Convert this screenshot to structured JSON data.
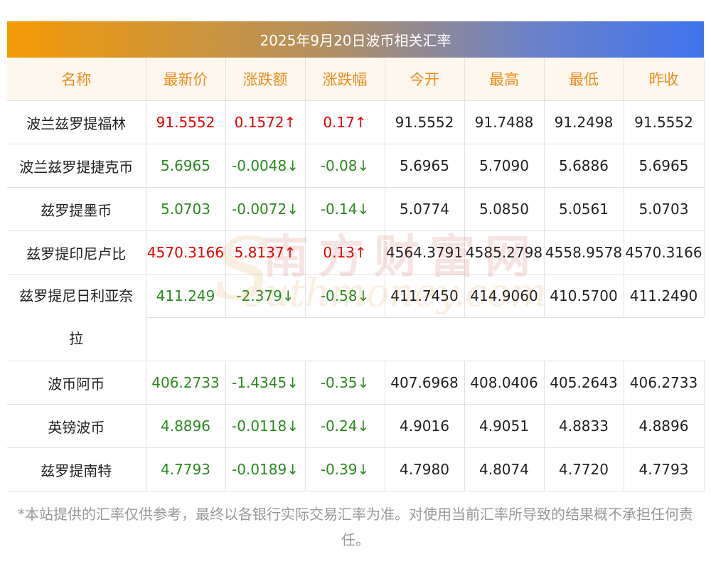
{
  "title": "2025年9月20日波币相关汇率",
  "headers": [
    "名称",
    "最新价",
    "涨跌额",
    "涨跌幅",
    "今开",
    "最高",
    "最低",
    "昨收"
  ],
  "rows": [
    {
      "name": "波兰兹罗提福林",
      "latest": "91.5552",
      "change": "0.1572↑",
      "pct": "0.17↑",
      "open": "91.5552",
      "high": "91.7488",
      "low": "91.2498",
      "prev": "91.5552",
      "dir": "up"
    },
    {
      "name": "波兰兹罗提捷克币",
      "latest": "5.6965",
      "change": "-0.0048↓",
      "pct": "-0.08↓",
      "open": "5.6965",
      "high": "5.7090",
      "low": "5.6886",
      "prev": "5.6965",
      "dir": "down"
    },
    {
      "name": "兹罗提墨币",
      "latest": "5.0703",
      "change": "-0.0072↓",
      "pct": "-0.14↓",
      "open": "5.0774",
      "high": "5.0850",
      "low": "5.0561",
      "prev": "5.0703",
      "dir": "down"
    },
    {
      "name": "兹罗提印尼卢比",
      "latest": "4570.3166",
      "change": "5.8137↑",
      "pct": "0.13↑",
      "open": "4564.3791",
      "high": "4585.2798",
      "low": "4558.9578",
      "prev": "4570.3166",
      "dir": "up"
    },
    {
      "name_line1": "兹罗提尼日利亚奈",
      "name_line2": "拉",
      "latest": "411.249",
      "change": "-2.379↓",
      "pct": "-0.58↓",
      "open": "411.7450",
      "high": "414.9060",
      "low": "410.5700",
      "prev": "411.2490",
      "dir": "down"
    },
    {
      "name": "波币阿币",
      "latest": "406.2733",
      "change": "-1.4345↓",
      "pct": "-0.35↓",
      "open": "407.6968",
      "high": "408.0406",
      "low": "405.2643",
      "prev": "406.2733",
      "dir": "down"
    },
    {
      "name": "英镑波币",
      "latest": "4.8896",
      "change": "-0.0118↓",
      "pct": "-0.24↓",
      "open": "4.9016",
      "high": "4.9051",
      "low": "4.8833",
      "prev": "4.8896",
      "dir": "down"
    },
    {
      "name": "兹罗提南特",
      "latest": "4.7793",
      "change": "-0.0189↓",
      "pct": "-0.39↓",
      "open": "4.7980",
      "high": "4.8074",
      "low": "4.7720",
      "prev": "4.7793",
      "dir": "down"
    }
  ],
  "colors": {
    "up": "#e60000",
    "down": "#2a8a1f",
    "header_text": "#ed8d1d"
  },
  "footnote": "*本站提供的汇率仅供参考，最终以各银行实际交易汇率为准。对使用当前汇率所导致的结果概不承担任何责任。",
  "watermark": {
    "cn": "南方财富网",
    "en": "outhmoney.com",
    "s": "S"
  }
}
